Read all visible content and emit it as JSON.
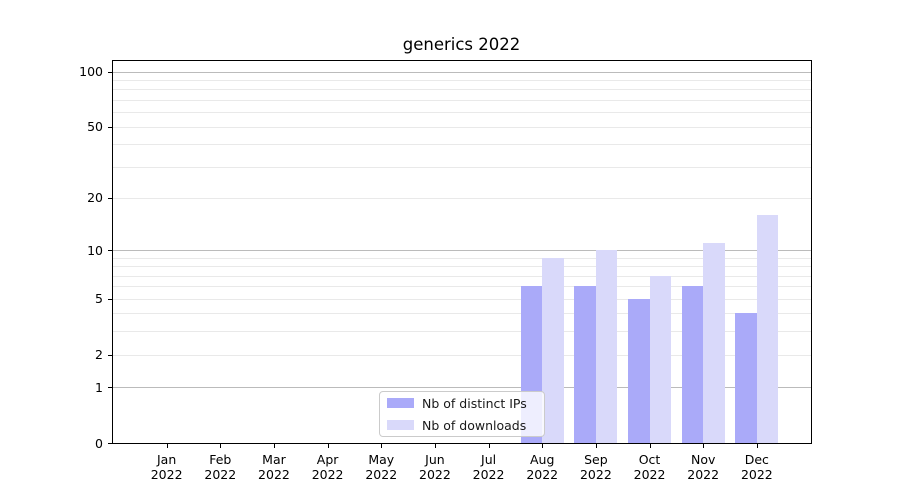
{
  "title": "generics 2022",
  "chart_data": {
    "type": "bar",
    "title": "generics 2022",
    "months": [
      "Jan",
      "Feb",
      "Mar",
      "Apr",
      "May",
      "Jun",
      "Jul",
      "Aug",
      "Sep",
      "Oct",
      "Nov",
      "Dec"
    ],
    "year": "2022",
    "categories": [
      "Jan 2022",
      "Feb 2022",
      "Mar 2022",
      "Apr 2022",
      "May 2022",
      "Jun 2022",
      "Jul 2022",
      "Aug 2022",
      "Sep 2022",
      "Oct 2022",
      "Nov 2022",
      "Dec 2022"
    ],
    "series": [
      {
        "name": "Nb of distinct IPs",
        "color": "#aaaaf9",
        "values": [
          0,
          0,
          0,
          0,
          0,
          0,
          0,
          6,
          6,
          5,
          6,
          4
        ]
      },
      {
        "name": "Nb of downloads",
        "color": "#d9d9fa",
        "values": [
          0,
          0,
          0,
          0,
          0,
          0,
          0,
          9,
          10,
          7,
          11,
          16
        ]
      }
    ],
    "xlabel": "",
    "ylabel": "",
    "y_scale": "log1p",
    "ylim": [
      0,
      116
    ],
    "y_tick_labels": [
      0,
      1,
      2,
      5,
      10,
      20,
      50,
      100
    ],
    "y_major_gridlines": [
      1,
      10,
      100
    ],
    "y_minor_gridlines": [
      2,
      3,
      4,
      5,
      6,
      7,
      8,
      9,
      20,
      30,
      40,
      50,
      60,
      70,
      80,
      90
    ],
    "grid": "horizontal",
    "legend_position": "lower center"
  },
  "legend": {
    "items": [
      {
        "label": "Nb of distinct IPs",
        "color": "#aaaaf9"
      },
      {
        "label": "Nb of downloads",
        "color": "#d9d9fa"
      }
    ]
  },
  "colors": {
    "background": "#ffffff",
    "spine": "#000000",
    "major_grid": "#bbbbbb",
    "minor_grid": "#e9e9e9",
    "text": "#000000"
  }
}
